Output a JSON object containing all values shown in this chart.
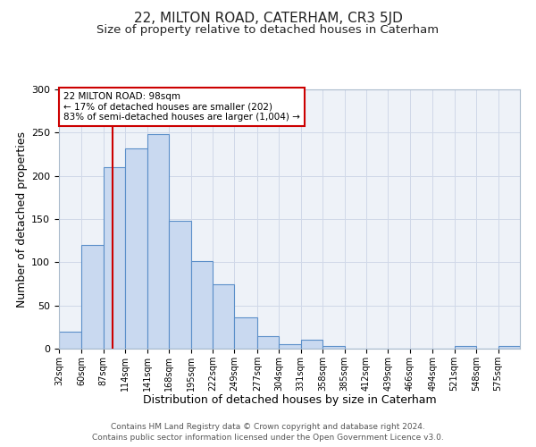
{
  "title": "22, MILTON ROAD, CATERHAM, CR3 5JD",
  "subtitle": "Size of property relative to detached houses in Caterham",
  "xlabel": "Distribution of detached houses by size in Caterham",
  "ylabel": "Number of detached properties",
  "bar_labels": [
    "32sqm",
    "60sqm",
    "87sqm",
    "114sqm",
    "141sqm",
    "168sqm",
    "195sqm",
    "222sqm",
    "249sqm",
    "277sqm",
    "304sqm",
    "331sqm",
    "358sqm",
    "385sqm",
    "412sqm",
    "439sqm",
    "466sqm",
    "494sqm",
    "521sqm",
    "548sqm",
    "575sqm"
  ],
  "bar_edges": [
    32,
    60,
    87,
    114,
    141,
    168,
    195,
    222,
    249,
    277,
    304,
    331,
    358,
    385,
    412,
    439,
    466,
    494,
    521,
    548,
    575,
    602
  ],
  "bar_heights": [
    20,
    120,
    210,
    232,
    248,
    148,
    101,
    75,
    36,
    15,
    5,
    10,
    3,
    0,
    0,
    0,
    0,
    0,
    3,
    0,
    3
  ],
  "bar_color": "#c9d9f0",
  "bar_edge_color": "#5b8fc9",
  "property_size": 98,
  "vline_color": "#cc0000",
  "annotation_line1": "22 MILTON ROAD: 98sqm",
  "annotation_line2": "← 17% of detached houses are smaller (202)",
  "annotation_line3": "83% of semi-detached houses are larger (1,004) →",
  "annotation_box_color": "#cc0000",
  "annotation_text_color": "#000000",
  "ylim": [
    0,
    300
  ],
  "yticks": [
    0,
    50,
    100,
    150,
    200,
    250,
    300
  ],
  "grid_color": "#d0d8e8",
  "background_color": "#eef2f8",
  "footer_line1": "Contains HM Land Registry data © Crown copyright and database right 2024.",
  "footer_line2": "Contains public sector information licensed under the Open Government Licence v3.0.",
  "title_fontsize": 11,
  "subtitle_fontsize": 9.5,
  "xlabel_fontsize": 9,
  "ylabel_fontsize": 9,
  "tick_fontsize": 7,
  "footer_fontsize": 6.5
}
